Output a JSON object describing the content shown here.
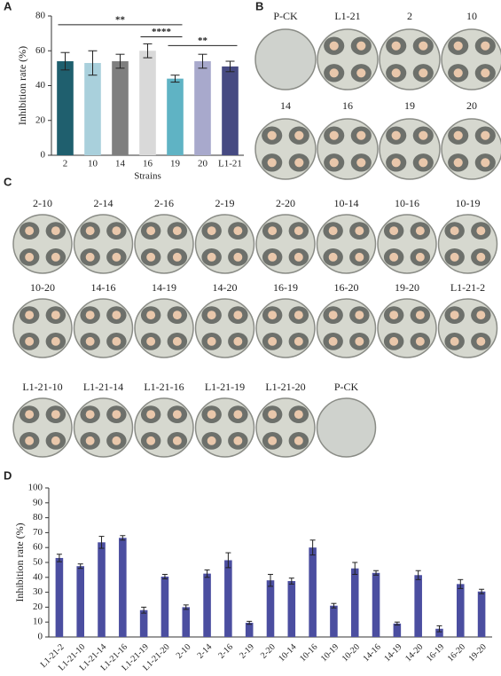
{
  "chart_data": [
    {
      "type": "bar",
      "panel_label": "A",
      "ylabel": "Inhibition rate (%)",
      "xlabel": "Strains",
      "categories": [
        "2",
        "10",
        "14",
        "16",
        "19",
        "20",
        "L1-21"
      ],
      "values": [
        54,
        53,
        54,
        60,
        44,
        54,
        51
      ],
      "errors": [
        5,
        7,
        4,
        4,
        2,
        4,
        3
      ],
      "colors": [
        "#1f5f6e",
        "#a9d0dc",
        "#7f7f7f",
        "#d9d9d9",
        "#5fb3c4",
        "#a8a9cc",
        "#464a82"
      ],
      "ylim": [
        0,
        80
      ],
      "yticks": [
        0,
        20,
        40,
        60,
        80
      ],
      "annotations": [
        {
          "text": "**",
          "from": "2",
          "to": "19",
          "y": 75
        },
        {
          "text": "****",
          "from": "16",
          "to": "19",
          "y": 68
        },
        {
          "text": "**",
          "from": "19",
          "to": "L1-21",
          "y": 63
        }
      ]
    },
    {
      "type": "bar",
      "panel_label": "D",
      "ylabel": "Inhibition rate (%)",
      "categories": [
        "L1-21-2",
        "L1-21-10",
        "L1-21-14",
        "L1-21-16",
        "L1-21-19",
        "L1-21-20",
        "2-10",
        "2-14",
        "2-16",
        "2-19",
        "2-20",
        "10-14",
        "10-16",
        "10-19",
        "10-20",
        "14-16",
        "14-19",
        "14-20",
        "16-19",
        "16-20",
        "19-20"
      ],
      "values": [
        53,
        47.5,
        63.5,
        66.5,
        18,
        40.5,
        20,
        42.5,
        51.5,
        9.5,
        38,
        37.5,
        60,
        21,
        46,
        43,
        9,
        41.5,
        5.5,
        35.5,
        30.5
      ],
      "errors": [
        2.5,
        1.5,
        4,
        1.5,
        2,
        1.5,
        1.5,
        2.5,
        5,
        1,
        4,
        2,
        5,
        1.5,
        4,
        1.5,
        1,
        3,
        2,
        3,
        1.5
      ],
      "color": "#4b4ea0",
      "ylim": [
        0,
        100
      ],
      "yticks": [
        0,
        10,
        20,
        30,
        40,
        50,
        60,
        70,
        80,
        90,
        100
      ]
    }
  ],
  "panel_b": {
    "label": "B",
    "dishes": [
      "P-CK",
      "L1-21",
      "2",
      "10",
      "14",
      "16",
      "19",
      "20"
    ]
  },
  "panel_c": {
    "label": "C",
    "dishes": [
      "2-10",
      "2-14",
      "2-16",
      "2-19",
      "2-20",
      "10-14",
      "10-16",
      "10-19",
      "10-20",
      "14-16",
      "14-19",
      "14-20",
      "16-19",
      "16-20",
      "19-20",
      "L1-21-2",
      "L1-21-10",
      "L1-21-14",
      "L1-21-16",
      "L1-21-19",
      "L1-21-20",
      "P-CK"
    ]
  }
}
